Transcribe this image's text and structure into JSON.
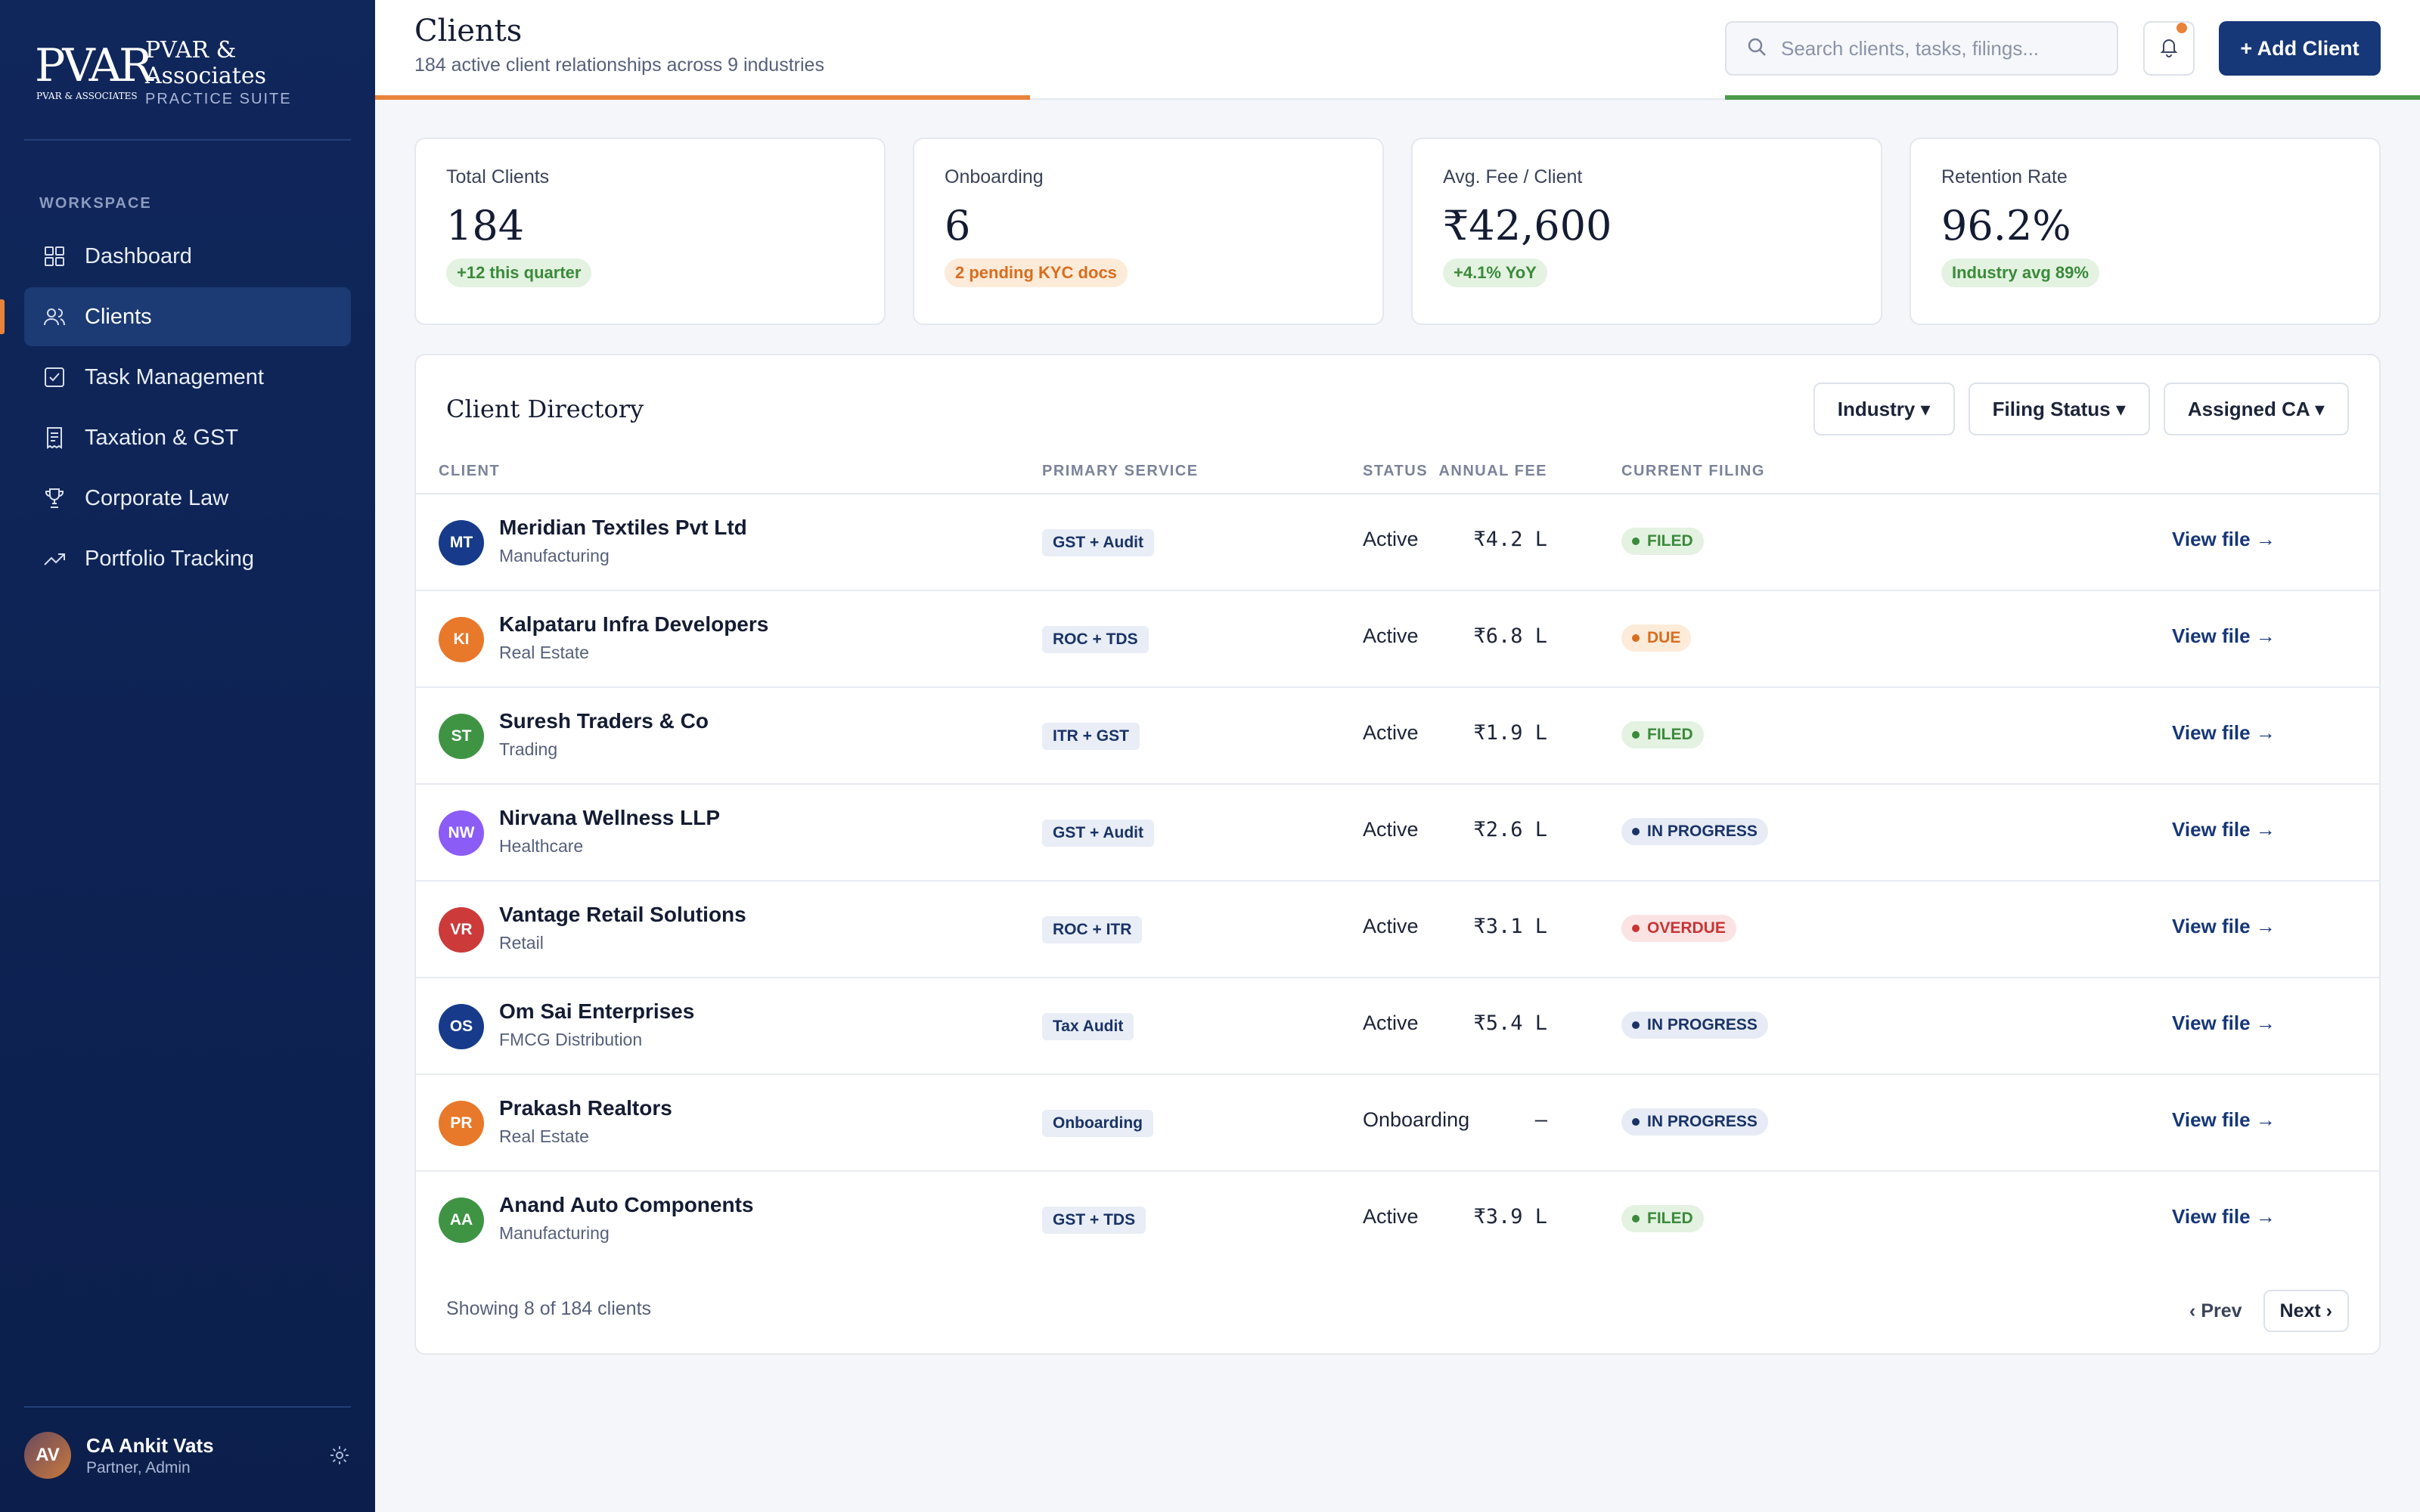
{
  "brand": {
    "logo_big": "PVAR",
    "logo_small": "PVAR & ASSOCIATES",
    "name": "PVAR & Associates",
    "sub": "PRACTICE SUITE"
  },
  "sidebar": {
    "section": "WORKSPACE",
    "items": [
      {
        "label": "Dashboard",
        "icon": "grid-icon"
      },
      {
        "label": "Clients",
        "icon": "users-icon",
        "active": true
      },
      {
        "label": "Task Management",
        "icon": "checkbox-icon"
      },
      {
        "label": "Taxation & GST",
        "icon": "receipt-icon"
      },
      {
        "label": "Corporate Law",
        "icon": "trophy-icon"
      },
      {
        "label": "Portfolio Tracking",
        "icon": "trend-icon"
      }
    ]
  },
  "user": {
    "initials": "AV",
    "name": "CA Ankit Vats",
    "role": "Partner, Admin"
  },
  "header": {
    "title": "Clients",
    "subtitle": "184 active client relationships across 9 industries",
    "search_placeholder": "Search clients, tasks, filings...",
    "add_label": "+ Add Client"
  },
  "stats": [
    {
      "label": "Total Clients",
      "value": "184",
      "badge": "+12 this quarter",
      "tone": "green"
    },
    {
      "label": "Onboarding",
      "value": "6",
      "badge": "2 pending KYC docs",
      "tone": "orange"
    },
    {
      "label": "Avg. Fee / Client",
      "value": "₹42,600",
      "badge": "+4.1% YoY",
      "tone": "green"
    },
    {
      "label": "Retention Rate",
      "value": "96.2%",
      "badge": "Industry avg 89%",
      "tone": "green"
    }
  ],
  "directory": {
    "title": "Client Directory",
    "filters": [
      "Industry ▾",
      "Filing Status ▾",
      "Assigned CA ▾"
    ],
    "columns": {
      "client": "CLIENT",
      "service": "PRIMARY SERVICE",
      "status": "STATUS",
      "filing": "CURRENT FILING",
      "fee": "ANNUAL FEE"
    },
    "rows": [
      {
        "initials": "MT",
        "color": "#173b8a",
        "name": "Meridian Textiles Pvt Ltd",
        "industry": "Manufacturing",
        "service": "GST + Audit",
        "status": "Active",
        "filing": "FILED",
        "filing_type": "filed",
        "fee": "₹4.2 L",
        "action": "View file →"
      },
      {
        "initials": "KI",
        "color": "#e8782a",
        "name": "Kalpataru Infra Developers",
        "industry": "Real Estate",
        "service": "ROC + TDS",
        "status": "Active",
        "filing": "DUE",
        "filing_type": "due",
        "fee": "₹6.8 L",
        "action": "View file →"
      },
      {
        "initials": "ST",
        "color": "#3f9444",
        "name": "Suresh Traders & Co",
        "industry": "Trading",
        "service": "ITR + GST",
        "status": "Active",
        "filing": "FILED",
        "filing_type": "filed",
        "fee": "₹1.9 L",
        "action": "View file →"
      },
      {
        "initials": "NW",
        "color": "#8b5cf6",
        "name": "Nirvana Wellness LLP",
        "industry": "Healthcare",
        "service": "GST + Audit",
        "status": "Active",
        "filing": "IN PROGRESS",
        "filing_type": "prog",
        "fee": "₹2.6 L",
        "action": "View file →"
      },
      {
        "initials": "VR",
        "color": "#cc3a3a",
        "name": "Vantage Retail Solutions",
        "industry": "Retail",
        "service": "ROC + ITR",
        "status": "Active",
        "filing": "OVERDUE",
        "filing_type": "over",
        "fee": "₹3.1 L",
        "action": "View file →"
      },
      {
        "initials": "OS",
        "color": "#173b8a",
        "name": "Om Sai Enterprises",
        "industry": "FMCG Distribution",
        "service": "Tax Audit",
        "status": "Active",
        "filing": "IN PROGRESS",
        "filing_type": "prog",
        "fee": "₹5.4 L",
        "action": "View file →"
      },
      {
        "initials": "PR",
        "color": "#e8782a",
        "name": "Prakash Realtors",
        "industry": "Real Estate",
        "service": "Onboarding",
        "status": "Onboarding",
        "filing": "IN PROGRESS",
        "filing_type": "prog",
        "fee": "—",
        "action": "View file →"
      },
      {
        "initials": "AA",
        "color": "#3f9444",
        "name": "Anand Auto Components",
        "industry": "Manufacturing",
        "service": "GST + TDS",
        "status": "Active",
        "filing": "FILED",
        "filing_type": "filed",
        "fee": "₹3.9 L",
        "action": "View file →"
      }
    ],
    "showing": "Showing 8 of 184 clients",
    "prev": "‹ Prev",
    "next": "Next ›"
  }
}
